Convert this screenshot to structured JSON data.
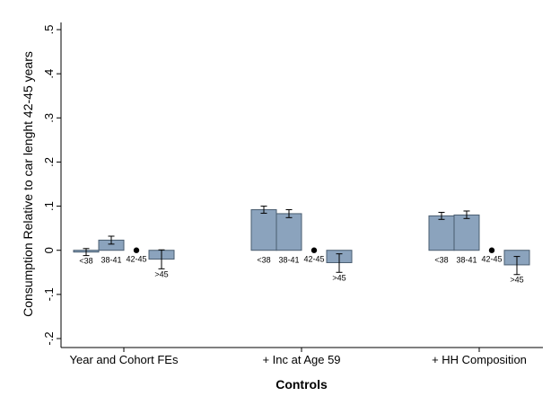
{
  "chart_data": {
    "type": "bar",
    "title": "",
    "xlabel": "Controls",
    "ylabel": "Consumption Relative to car lenght 42-45 years",
    "ylim": [
      -0.2,
      0.5
    ],
    "yticks": [
      -0.2,
      -0.1,
      0,
      0.1,
      0.2,
      0.3,
      0.4,
      0.5
    ],
    "ytick_labels": [
      "-.2",
      "-.1",
      "0",
      ".1",
      ".2",
      ".3",
      ".4",
      ".5"
    ],
    "grid": false,
    "legend": "none",
    "bar_color": "#8ba3bd",
    "bar_edge_color": "#4a5d70",
    "groups": [
      "Year and Cohort FEs",
      "+ Inc at Age 59",
      "+ HH Composition"
    ],
    "categories": [
      "<38",
      "38-41",
      "42-45",
      ">45"
    ],
    "reference_category": "42-45",
    "series": [
      {
        "group": "Year and Cohort FEs",
        "values": [
          -0.004,
          0.023,
          0,
          -0.02
        ],
        "ci_low": [
          -0.012,
          0.014,
          null,
          -0.042
        ],
        "ci_high": [
          0.004,
          0.032,
          null,
          0.001
        ]
      },
      {
        "group": "+ Inc at Age 59",
        "values": [
          0.092,
          0.083,
          0,
          -0.028
        ],
        "ci_low": [
          0.084,
          0.074,
          null,
          -0.05
        ],
        "ci_high": [
          0.1,
          0.092,
          null,
          -0.008
        ]
      },
      {
        "group": "+ HH Composition",
        "values": [
          0.078,
          0.08,
          0,
          -0.033
        ],
        "ci_low": [
          0.07,
          0.072,
          null,
          -0.055
        ],
        "ci_high": [
          0.086,
          0.089,
          null,
          -0.014
        ]
      }
    ]
  }
}
